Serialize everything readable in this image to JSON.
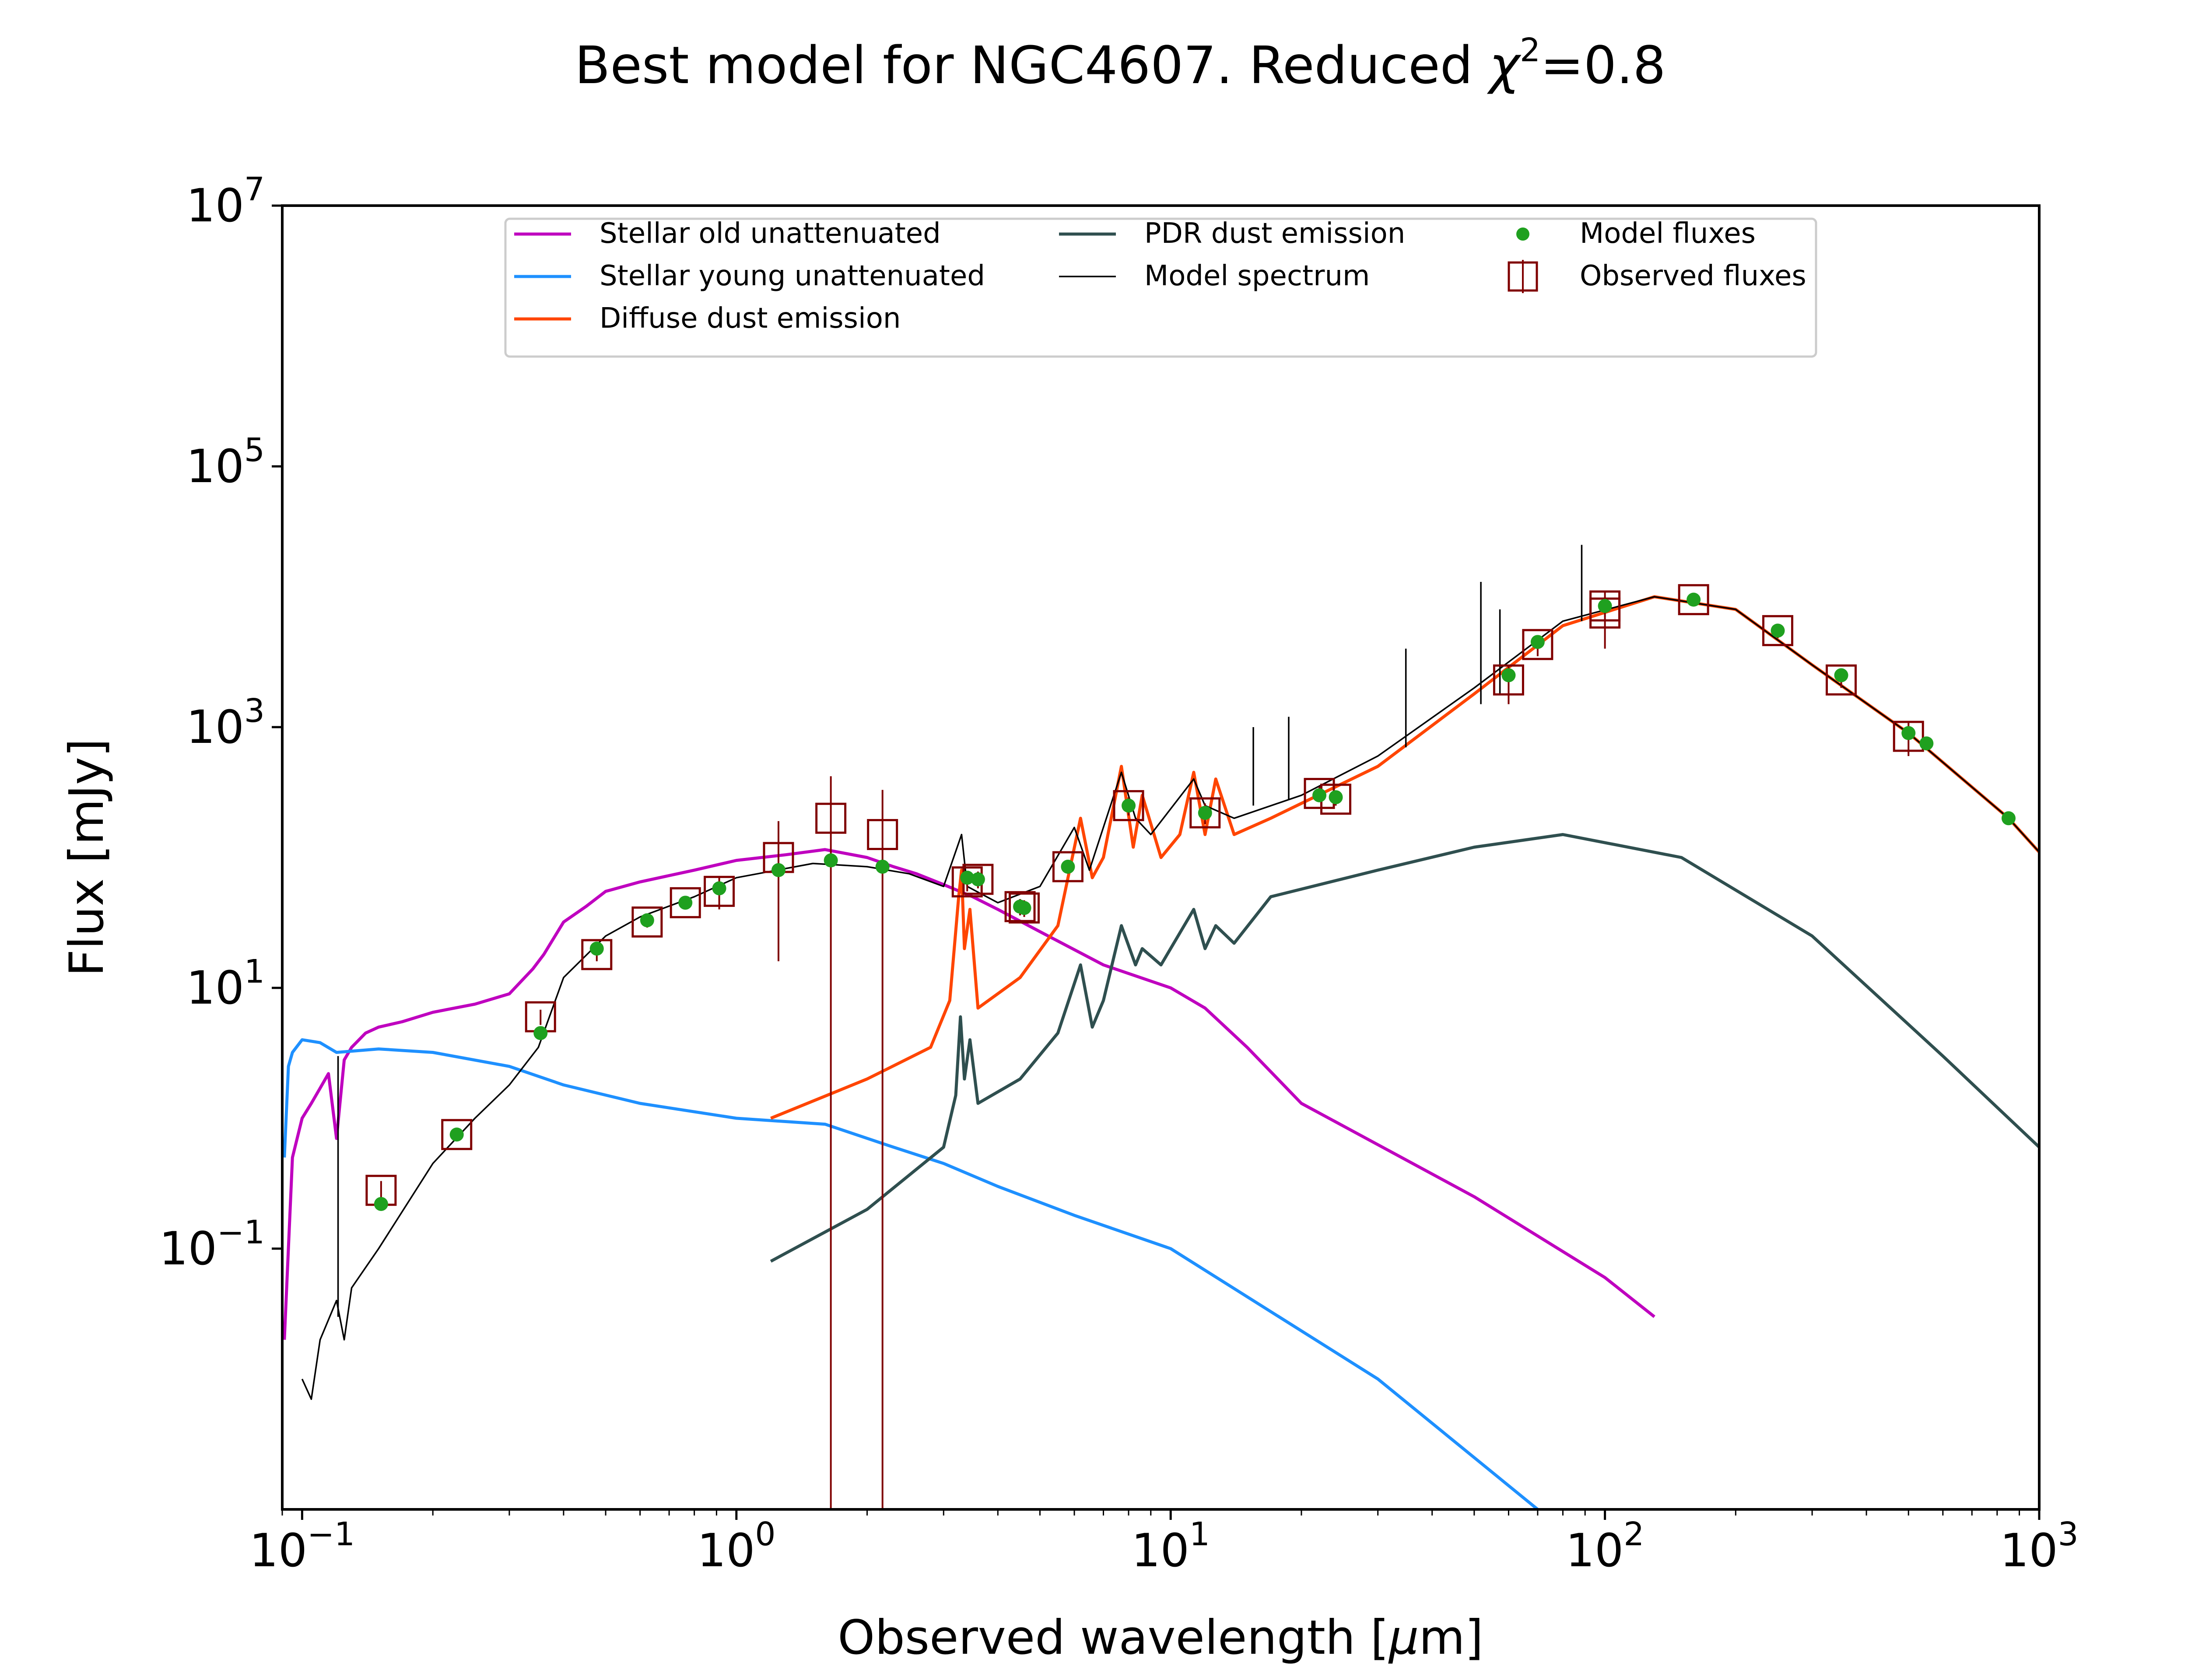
{
  "chart_data": {
    "type": "line",
    "title_text": "Best model for NGC4607. Reduced ",
    "title_chi": "χ",
    "title_chi_exp": "2",
    "title_value": "=0.8",
    "xlabel_text": "Observed wavelength [",
    "xlabel_mu": "μ",
    "xlabel_unit": "m]",
    "ylabel": "Flux [mJy]",
    "x_scale": "log",
    "y_scale": "log",
    "xlim": [
      0.09,
      1000
    ],
    "ylim": [
      0.001,
      10000000
    ],
    "x_ticks": [
      {
        "value": 0.1,
        "base": "10",
        "exp": "−1"
      },
      {
        "value": 1,
        "base": "10",
        "exp": "0"
      },
      {
        "value": 10,
        "base": "10",
        "exp": "1"
      },
      {
        "value": 100,
        "base": "10",
        "exp": "2"
      },
      {
        "value": 1000,
        "base": "10",
        "exp": "3"
      }
    ],
    "y_ticks": [
      {
        "value": 0.1,
        "base": "10",
        "exp": "−1"
      },
      {
        "value": 10,
        "base": "10",
        "exp": "1"
      },
      {
        "value": 1000,
        "base": "10",
        "exp": "3"
      },
      {
        "value": 100000,
        "base": "10",
        "exp": "5"
      },
      {
        "value": 10000000,
        "base": "10",
        "exp": "7"
      }
    ],
    "grid": false,
    "legend_position": "top-center",
    "colors": {
      "stellar_old": "#bf00bf",
      "stellar_young": "#1e90ff",
      "diffuse_dust": "#ff4500",
      "pdr_dust": "#2f4f4f",
      "model_spectrum": "#000000",
      "model_fluxes": "#1fa01f",
      "observed_fluxes": "#800000"
    },
    "series": [
      {
        "name": "Stellar old unattenuated",
        "key": "stellar_old",
        "points": [
          [
            0.091,
            0.02
          ],
          [
            0.095,
            0.5
          ],
          [
            0.1,
            1.0
          ],
          [
            0.105,
            1.3
          ],
          [
            0.11,
            1.7
          ],
          [
            0.115,
            2.2
          ],
          [
            0.12,
            0.7
          ],
          [
            0.125,
            2.8
          ],
          [
            0.13,
            3.5
          ],
          [
            0.14,
            4.5
          ],
          [
            0.15,
            5.0
          ],
          [
            0.17,
            5.5
          ],
          [
            0.2,
            6.5
          ],
          [
            0.25,
            7.5
          ],
          [
            0.3,
            9.0
          ],
          [
            0.34,
            14.0
          ],
          [
            0.36,
            18.0
          ],
          [
            0.4,
            32.0
          ],
          [
            0.45,
            42.0
          ],
          [
            0.5,
            55.0
          ],
          [
            0.6,
            65.0
          ],
          [
            0.8,
            80.0
          ],
          [
            1.0,
            95.0
          ],
          [
            1.3,
            105.0
          ],
          [
            1.6,
            115.0
          ],
          [
            2.0,
            100.0
          ],
          [
            2.3,
            85.0
          ],
          [
            2.6,
            75.0
          ],
          [
            3.0,
            62.0
          ],
          [
            3.5,
            50.0
          ],
          [
            4.0,
            40.0
          ],
          [
            5.0,
            27.0
          ],
          [
            7.0,
            15.0
          ],
          [
            10.0,
            10.0
          ],
          [
            12.0,
            7.0
          ],
          [
            15.0,
            3.5
          ],
          [
            20.0,
            1.3
          ],
          [
            50.0,
            0.25
          ],
          [
            100.0,
            0.06
          ],
          [
            130.0,
            0.03
          ]
        ]
      },
      {
        "name": "Stellar young unattenuated",
        "key": "stellar_young",
        "points": [
          [
            0.091,
            0.5
          ],
          [
            0.093,
            2.5
          ],
          [
            0.095,
            3.2
          ],
          [
            0.1,
            4.0
          ],
          [
            0.11,
            3.8
          ],
          [
            0.12,
            3.2
          ],
          [
            0.15,
            3.4
          ],
          [
            0.2,
            3.2
          ],
          [
            0.3,
            2.5
          ],
          [
            0.4,
            1.8
          ],
          [
            0.6,
            1.3
          ],
          [
            1.0,
            1.0
          ],
          [
            1.6,
            0.9
          ],
          [
            2.3,
            0.6
          ],
          [
            3.0,
            0.45
          ],
          [
            4.0,
            0.3
          ],
          [
            6.0,
            0.18
          ],
          [
            10.0,
            0.1
          ],
          [
            30.0,
            0.01
          ],
          [
            70.0,
            0.001
          ]
        ]
      },
      {
        "name": "Diffuse dust emission",
        "key": "diffuse_dust",
        "points": [
          [
            1.2,
            1.0
          ],
          [
            2.0,
            2.0
          ],
          [
            2.8,
            3.5
          ],
          [
            3.1,
            8.0
          ],
          [
            3.25,
            50.0
          ],
          [
            3.3,
            80.0
          ],
          [
            3.35,
            20.0
          ],
          [
            3.45,
            40.0
          ],
          [
            3.6,
            7.0
          ],
          [
            4.5,
            12.0
          ],
          [
            5.5,
            30.0
          ],
          [
            6.2,
            200.0
          ],
          [
            6.6,
            70.0
          ],
          [
            7.0,
            100.0
          ],
          [
            7.7,
            500.0
          ],
          [
            8.2,
            120.0
          ],
          [
            8.6,
            300.0
          ],
          [
            9.5,
            100.0
          ],
          [
            10.5,
            150.0
          ],
          [
            11.3,
            450.0
          ],
          [
            12.0,
            150.0
          ],
          [
            12.7,
            400.0
          ],
          [
            14.0,
            150.0
          ],
          [
            17.0,
            200.0
          ],
          [
            20.0,
            260.0
          ],
          [
            30.0,
            500.0
          ],
          [
            50.0,
            1800.0
          ],
          [
            80.0,
            6000.0
          ],
          [
            130.0,
            10000.0
          ],
          [
            200.0,
            8000.0
          ],
          [
            300.0,
            3000.0
          ],
          [
            500.0,
            900.0
          ],
          [
            850.0,
            200.0
          ],
          [
            1000.0,
            110.0
          ]
        ]
      },
      {
        "name": "PDR dust emission",
        "key": "pdr_dust",
        "points": [
          [
            1.2,
            0.08
          ],
          [
            2.0,
            0.2
          ],
          [
            3.0,
            0.6
          ],
          [
            3.2,
            1.5
          ],
          [
            3.28,
            6.0
          ],
          [
            3.35,
            2.0
          ],
          [
            3.45,
            4.0
          ],
          [
            3.6,
            1.3
          ],
          [
            4.5,
            2.0
          ],
          [
            5.5,
            4.5
          ],
          [
            6.2,
            15.0
          ],
          [
            6.6,
            5.0
          ],
          [
            7.0,
            8.0
          ],
          [
            7.7,
            30.0
          ],
          [
            8.3,
            15.0
          ],
          [
            8.6,
            20.0
          ],
          [
            9.5,
            15.0
          ],
          [
            11.3,
            40.0
          ],
          [
            12.0,
            20.0
          ],
          [
            12.7,
            30.0
          ],
          [
            14.0,
            22.0
          ],
          [
            17.0,
            50.0
          ],
          [
            30.0,
            80.0
          ],
          [
            50.0,
            120.0
          ],
          [
            80.0,
            150.0
          ],
          [
            150.0,
            100.0
          ],
          [
            300.0,
            25.0
          ],
          [
            600.0,
            3.0
          ],
          [
            1000.0,
            0.6
          ]
        ]
      },
      {
        "name": "Model spectrum",
        "key": "model_spectrum",
        "points": [
          [
            0.1,
            0.01
          ],
          [
            0.105,
            0.007
          ],
          [
            0.11,
            0.02
          ],
          [
            0.12,
            0.04
          ],
          [
            0.125,
            0.02
          ],
          [
            0.13,
            0.05
          ],
          [
            0.15,
            0.1
          ],
          [
            0.2,
            0.45
          ],
          [
            0.25,
            1.0
          ],
          [
            0.3,
            1.8
          ],
          [
            0.35,
            3.5
          ],
          [
            0.4,
            12.0
          ],
          [
            0.5,
            25.0
          ],
          [
            0.6,
            35.0
          ],
          [
            0.8,
            50.0
          ],
          [
            1.0,
            70.0
          ],
          [
            1.5,
            90.0
          ],
          [
            2.0,
            85.0
          ],
          [
            2.5,
            75.0
          ],
          [
            3.0,
            60.0
          ],
          [
            3.3,
            150.0
          ],
          [
            3.4,
            60.0
          ],
          [
            4.0,
            45.0
          ],
          [
            5.0,
            60.0
          ],
          [
            6.0,
            170.0
          ],
          [
            6.5,
            80.0
          ],
          [
            7.7,
            450.0
          ],
          [
            8.3,
            200.0
          ],
          [
            9.0,
            150.0
          ],
          [
            11.3,
            400.0
          ],
          [
            12.0,
            250.0
          ],
          [
            14.0,
            200.0
          ],
          [
            20.0,
            300.0
          ],
          [
            30.0,
            600.0
          ],
          [
            50.0,
            2000.0
          ],
          [
            80.0,
            6500.0
          ],
          [
            130.0,
            10000.0
          ],
          [
            200.0,
            8000.0
          ],
          [
            300.0,
            3000.0
          ],
          [
            500.0,
            900.0
          ],
          [
            850.0,
            200.0
          ],
          [
            1000.0,
            110.0
          ]
        ]
      }
    ],
    "model_spectrum_lines": [
      {
        "x": 0.121,
        "ylow": 0.03,
        "yhigh": 3.0
      },
      {
        "x": 15.5,
        "ylow": 250.0,
        "yhigh": 1000.0
      },
      {
        "x": 18.7,
        "ylow": 280.0,
        "yhigh": 1200.0
      },
      {
        "x": 34.8,
        "ylow": 700.0,
        "yhigh": 4000.0
      },
      {
        "x": 51.8,
        "ylow": 1500.0,
        "yhigh": 13000.0
      },
      {
        "x": 57.3,
        "ylow": 1800.0,
        "yhigh": 8000.0
      },
      {
        "x": 88.4,
        "ylow": 6500.0,
        "yhigh": 25000.0
      }
    ],
    "model_fluxes": [
      [
        0.152,
        0.22
      ],
      [
        0.227,
        0.75
      ],
      [
        0.354,
        4.5
      ],
      [
        0.477,
        20.0
      ],
      [
        0.623,
        33.0
      ],
      [
        0.763,
        45.0
      ],
      [
        0.913,
        58.0
      ],
      [
        1.25,
        80.0
      ],
      [
        1.65,
        95.0
      ],
      [
        2.17,
        85.0
      ],
      [
        3.4,
        70.0
      ],
      [
        3.6,
        68.0
      ],
      [
        4.5,
        42.0
      ],
      [
        4.6,
        41.0
      ],
      [
        5.8,
        85.0
      ],
      [
        8.0,
        250.0
      ],
      [
        12.0,
        220.0
      ],
      [
        22.0,
        300.0
      ],
      [
        24.0,
        290.0
      ],
      [
        60.0,
        2500.0
      ],
      [
        70.0,
        4500.0
      ],
      [
        100.0,
        8500.0
      ],
      [
        160.0,
        9500.0
      ],
      [
        250.0,
        5500.0
      ],
      [
        350.0,
        2500.0
      ],
      [
        500.0,
        900.0
      ],
      [
        550.0,
        750.0
      ],
      [
        850.0,
        200.0
      ]
    ],
    "observed_fluxes": [
      {
        "x": 0.152,
        "y": 0.28,
        "err_low": 0.22,
        "err_high": 0.33
      },
      {
        "x": 0.227,
        "y": 0.75,
        "err_low": 0.68,
        "err_high": 0.83
      },
      {
        "x": 0.354,
        "y": 6.0,
        "err_low": 5.2,
        "err_high": 6.8
      },
      {
        "x": 0.477,
        "y": 18.0,
        "err_low": 16.0,
        "err_high": 20.0
      },
      {
        "x": 0.623,
        "y": 32.0,
        "err_low": 29.0,
        "err_high": 35.0
      },
      {
        "x": 0.763,
        "y": 45.0,
        "err_low": 41.0,
        "err_high": 49.0
      },
      {
        "x": 0.913,
        "y": 55.0,
        "err_low": 40.0,
        "err_high": 70.0
      },
      {
        "x": 1.25,
        "y": 100.0,
        "err_low": 16.0,
        "err_high": 190.0
      },
      {
        "x": 1.65,
        "y": 200.0,
        "err_low": 0.001,
        "err_high": 420.0
      },
      {
        "x": 2.17,
        "y": 150.0,
        "err_low": 0.001,
        "err_high": 330.0
      },
      {
        "x": 3.4,
        "y": 65.0,
        "err_low": 55.0,
        "err_high": 75.0
      },
      {
        "x": 3.6,
        "y": 68.0,
        "err_low": 58.0,
        "err_high": 78.0
      },
      {
        "x": 4.5,
        "y": 42.0,
        "err_low": 36.0,
        "err_high": 48.0
      },
      {
        "x": 4.6,
        "y": 41.0,
        "err_low": 35.0,
        "err_high": 47.0
      },
      {
        "x": 5.8,
        "y": 85.0,
        "err_low": 75.0,
        "err_high": 95.0
      },
      {
        "x": 8.0,
        "y": 250.0,
        "err_low": 210.0,
        "err_high": 290.0
      },
      {
        "x": 12.0,
        "y": 220.0,
        "err_low": 180.0,
        "err_high": 260.0
      },
      {
        "x": 22.0,
        "y": 310.0,
        "err_low": 270.0,
        "err_high": 350.0
      },
      {
        "x": 24.0,
        "y": 280.0,
        "err_low": 250.0,
        "err_high": 310.0
      },
      {
        "x": 60.0,
        "y": 2300.0,
        "err_low": 1500.0,
        "err_high": 3000.0
      },
      {
        "x": 70.0,
        "y": 4300.0,
        "err_low": 3500.0,
        "err_high": 5000.0
      },
      {
        "x": 100.0,
        "y": 7500.0,
        "err_low": 4000.0,
        "err_high": 11000.0
      },
      {
        "x": 100.0,
        "y": 8500.0,
        "err_low": 7000.0,
        "err_high": 10000.0
      },
      {
        "x": 160.0,
        "y": 9500.0,
        "err_low": 8500.0,
        "err_high": 10500.0
      },
      {
        "x": 250.0,
        "y": 5500.0,
        "err_low": 4800.0,
        "err_high": 6200.0
      },
      {
        "x": 350.0,
        "y": 2300.0,
        "err_low": 2000.0,
        "err_high": 2600.0
      },
      {
        "x": 500.0,
        "y": 850.0,
        "err_low": 600.0,
        "err_high": 1100.0
      }
    ],
    "legend": [
      {
        "label": "Stellar old unattenuated",
        "key": "stellar_old",
        "marker": "line"
      },
      {
        "label": "Stellar young unattenuated",
        "key": "stellar_young",
        "marker": "line"
      },
      {
        "label": "Diffuse dust emission",
        "key": "diffuse_dust",
        "marker": "line"
      },
      {
        "label": "PDR dust emission",
        "key": "pdr_dust",
        "marker": "line"
      },
      {
        "label": "Model spectrum",
        "key": "model_spectrum",
        "marker": "thin-line"
      },
      {
        "label": "Model fluxes",
        "key": "model_fluxes",
        "marker": "dot"
      },
      {
        "label": "Observed fluxes",
        "key": "observed_fluxes",
        "marker": "square-errbar"
      }
    ]
  }
}
